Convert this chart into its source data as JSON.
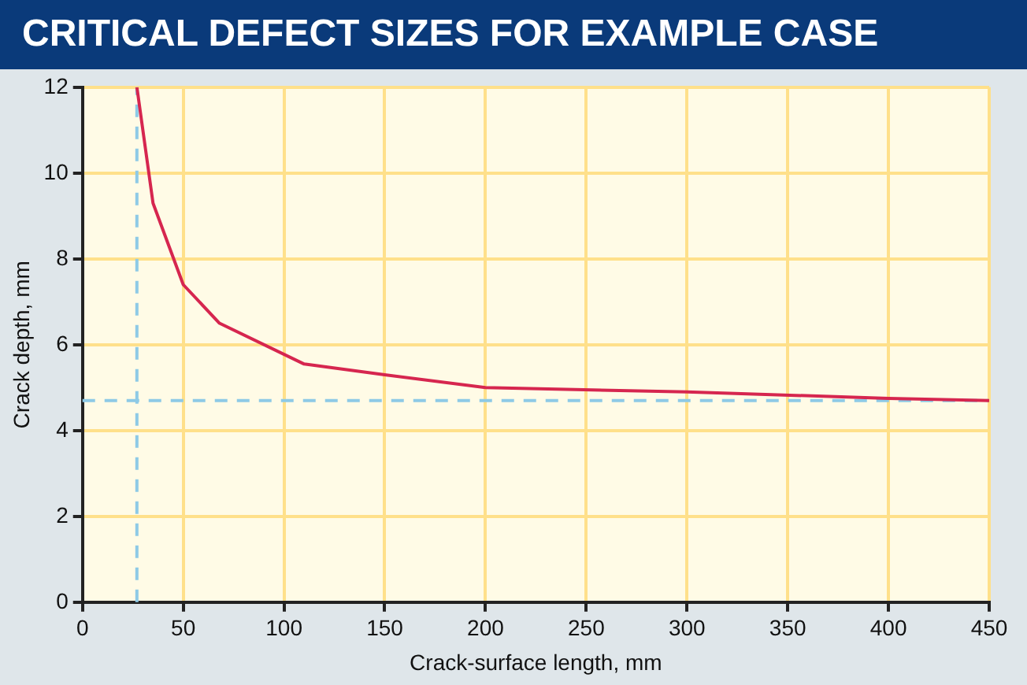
{
  "chart_data": {
    "type": "line",
    "title": "CRITICAL DEFECT SIZES FOR EXAMPLE CASE",
    "xlabel": "Crack-surface length, mm",
    "ylabel": "Crack depth, mm",
    "x": [
      27,
      35,
      50,
      68,
      110,
      150,
      200,
      300,
      400,
      450
    ],
    "series": [
      {
        "color": "#d6264f",
        "values": [
          12,
          9.3,
          7.4,
          6.5,
          5.55,
          5.3,
          5.0,
          4.9,
          4.75,
          4.7
        ]
      }
    ],
    "xlim": [
      0,
      450
    ],
    "xticks": [
      0,
      50,
      100,
      150,
      200,
      250,
      300,
      350,
      400,
      450
    ],
    "ylim": [
      0,
      12
    ],
    "yticks": [
      0,
      2,
      4,
      6,
      8,
      10,
      12
    ],
    "ref_lines": [
      {
        "axis": "x",
        "value": 27,
        "color": "#8ecae6",
        "line_style": "dashed"
      },
      {
        "axis": "y",
        "value": 4.7,
        "color": "#8ecae6",
        "line_style": "dashed"
      }
    ],
    "grid": true,
    "legend": false,
    "marker": "none",
    "line_style": "solid"
  }
}
